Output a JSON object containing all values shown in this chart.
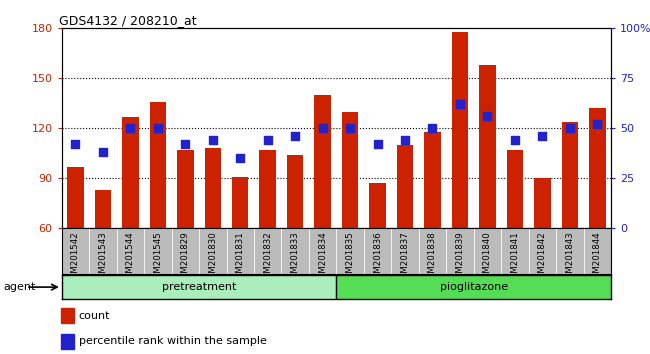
{
  "title": "GDS4132 / 208210_at",
  "samples": [
    "GSM201542",
    "GSM201543",
    "GSM201544",
    "GSM201545",
    "GSM201829",
    "GSM201830",
    "GSM201831",
    "GSM201832",
    "GSM201833",
    "GSM201834",
    "GSM201835",
    "GSM201836",
    "GSM201837",
    "GSM201838",
    "GSM201839",
    "GSM201840",
    "GSM201841",
    "GSM201842",
    "GSM201843",
    "GSM201844"
  ],
  "counts": [
    97,
    83,
    127,
    136,
    107,
    108,
    91,
    107,
    104,
    140,
    130,
    87,
    110,
    118,
    178,
    158,
    107,
    90,
    124,
    132
  ],
  "percentile_ranks": [
    42,
    38,
    50,
    50,
    42,
    44,
    35,
    44,
    46,
    50,
    50,
    42,
    44,
    50,
    62,
    56,
    44,
    46,
    50,
    52
  ],
  "pretreatment_count": 10,
  "pioglitazone_count": 10,
  "ylim_left": [
    60,
    180
  ],
  "yticks_left": [
    60,
    90,
    120,
    150,
    180
  ],
  "ylim_right": [
    0,
    100
  ],
  "yticks_right": [
    0,
    25,
    50,
    75,
    100
  ],
  "ytick_right_labels": [
    "0",
    "25",
    "50",
    "75",
    "100%"
  ],
  "bar_color": "#cc2200",
  "dot_color": "#2222cc",
  "pretreatment_color": "#aaeebb",
  "pioglitazone_color": "#55dd55",
  "bg_color": "#bbbbbb",
  "legend_count_label": "count",
  "legend_pct_label": "percentile rank within the sample"
}
